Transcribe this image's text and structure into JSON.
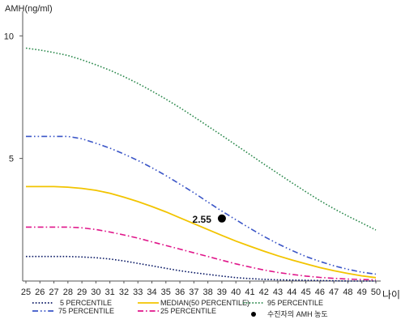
{
  "chart_data": {
    "type": "line",
    "ylabel": "AMH(ng/ml)",
    "xlabel": "나이",
    "x": [
      25,
      26,
      27,
      28,
      29,
      30,
      31,
      32,
      33,
      34,
      35,
      36,
      37,
      38,
      39,
      40,
      41,
      42,
      43,
      44,
      45,
      46,
      47,
      48,
      49,
      50
    ],
    "ylim": [
      0,
      11
    ],
    "yticks": [
      5,
      10
    ],
    "series": [
      {
        "name": "5 PERCENTILE",
        "color": "#0b1a66",
        "dash": "dotted",
        "values": [
          1.0,
          1.0,
          1.0,
          1.0,
          0.98,
          0.95,
          0.9,
          0.82,
          0.72,
          0.62,
          0.52,
          0.42,
          0.34,
          0.27,
          0.2,
          0.14,
          0.1,
          0.07,
          0.05,
          0.04,
          0.03,
          0.02,
          0.01,
          0.0,
          0.0,
          0.0
        ]
      },
      {
        "name": "25 PERCENTILE",
        "color": "#e0168a",
        "dash": "dashdot",
        "values": [
          2.2,
          2.2,
          2.2,
          2.2,
          2.17,
          2.1,
          2.0,
          1.88,
          1.75,
          1.6,
          1.45,
          1.3,
          1.15,
          1.0,
          0.85,
          0.7,
          0.57,
          0.45,
          0.35,
          0.27,
          0.2,
          0.15,
          0.11,
          0.08,
          0.06,
          0.05
        ]
      },
      {
        "name": "MEDIAN(50 PERCENTILE)",
        "color": "#f2c400",
        "dash": "solid",
        "values": [
          3.85,
          3.85,
          3.85,
          3.83,
          3.78,
          3.7,
          3.58,
          3.42,
          3.24,
          3.04,
          2.82,
          2.58,
          2.34,
          2.1,
          1.86,
          1.63,
          1.42,
          1.22,
          1.03,
          0.86,
          0.7,
          0.55,
          0.42,
          0.31,
          0.21,
          0.14
        ]
      },
      {
        "name": "75 PERCENTILE",
        "color": "#3a55c7",
        "dash": "dashdotdot",
        "values": [
          5.9,
          5.9,
          5.9,
          5.9,
          5.8,
          5.62,
          5.42,
          5.18,
          4.92,
          4.62,
          4.3,
          3.95,
          3.6,
          3.22,
          2.85,
          2.5,
          2.15,
          1.82,
          1.52,
          1.25,
          1.0,
          0.8,
          0.62,
          0.48,
          0.36,
          0.28
        ]
      },
      {
        "name": "95 PERCENTILE",
        "color": "#2d8a4e",
        "dash": "dotted",
        "values": [
          9.5,
          9.42,
          9.32,
          9.2,
          9.02,
          8.82,
          8.6,
          8.34,
          8.06,
          7.75,
          7.42,
          7.07,
          6.7,
          6.32,
          5.94,
          5.55,
          5.16,
          4.77,
          4.39,
          4.01,
          3.64,
          3.28,
          2.95,
          2.65,
          2.37,
          2.08
        ]
      }
    ],
    "highlight": {
      "name": "수진자의 AMH 농도",
      "x": 39,
      "y": 2.55,
      "label": "2.55",
      "color": "#000000"
    },
    "legend_position": "bottom"
  }
}
